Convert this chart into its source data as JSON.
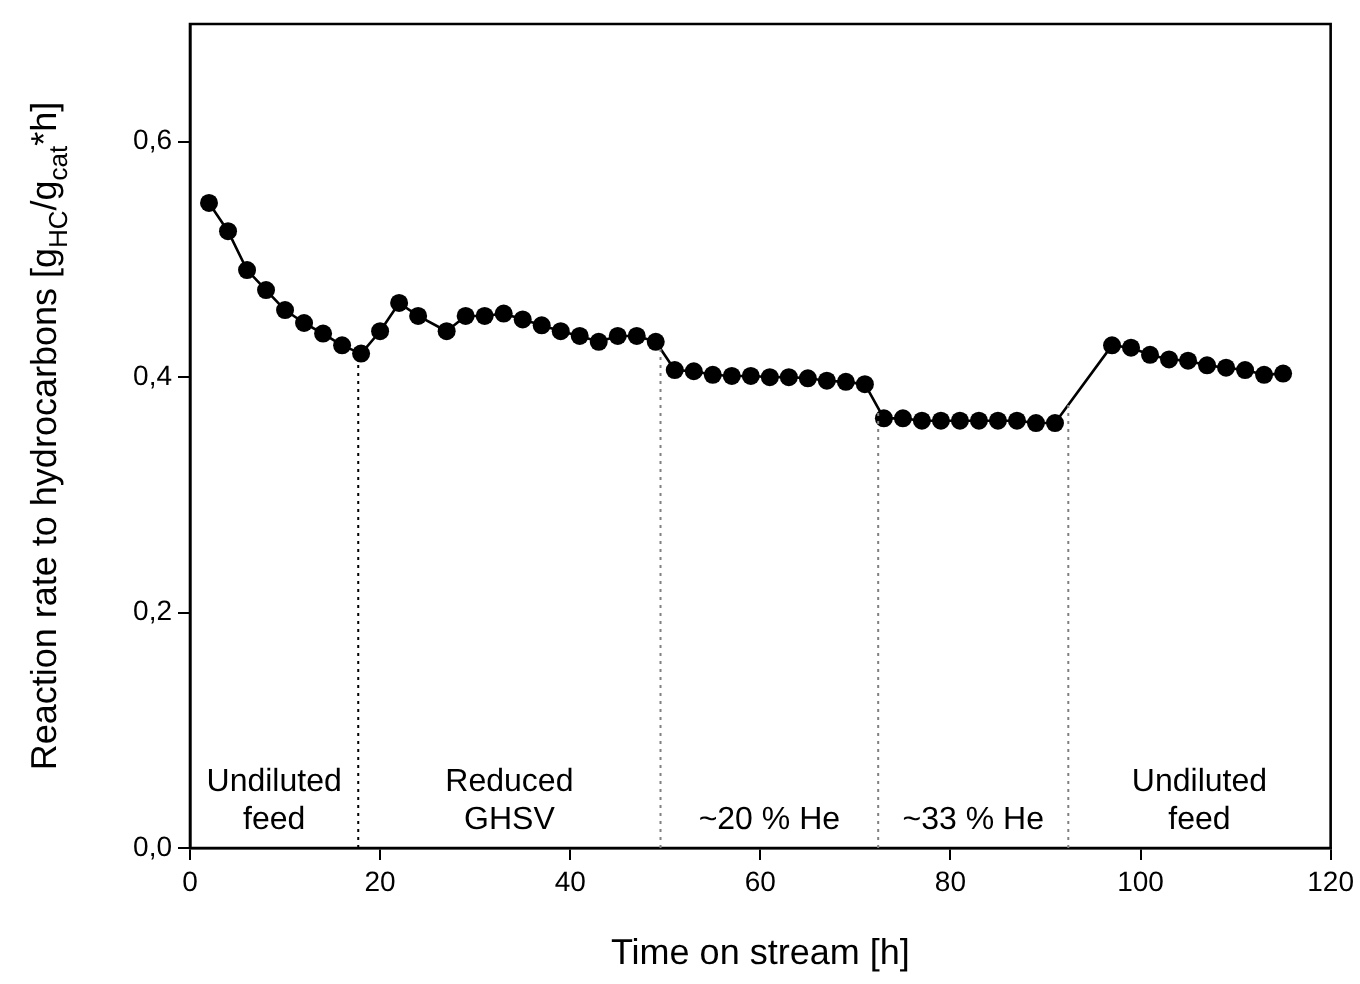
{
  "chart_data": {
    "type": "line",
    "xlabel": "Time on stream [h]",
    "ylabel": "Reaction rate to hydrocarbons [g$_{HC}$/g$_{cat}$*h]",
    "x": [
      2,
      4,
      6,
      8,
      10,
      12,
      14,
      16,
      18,
      20,
      22,
      24,
      27,
      29,
      31,
      33,
      35,
      37,
      39,
      41,
      43,
      45,
      47,
      49,
      51,
      53,
      55,
      57,
      59,
      61,
      63,
      65,
      67,
      69,
      71,
      73,
      75,
      77,
      79,
      81,
      83,
      85,
      87,
      89,
      91,
      97,
      99,
      101,
      103,
      105,
      107,
      109,
      111,
      113,
      115
    ],
    "series": [
      {
        "color": "#000000",
        "values": [
          0.548,
          0.524,
          0.491,
          0.474,
          0.457,
          0.446,
          0.437,
          0.427,
          0.42,
          0.439,
          0.463,
          0.452,
          0.439,
          0.452,
          0.452,
          0.454,
          0.449,
          0.444,
          0.439,
          0.435,
          0.43,
          0.435,
          0.435,
          0.43,
          0.406,
          0.405,
          0.402,
          0.401,
          0.401,
          0.4,
          0.4,
          0.399,
          0.397,
          0.396,
          0.394,
          0.365,
          0.365,
          0.363,
          0.363,
          0.363,
          0.363,
          0.363,
          0.363,
          0.361,
          0.361,
          0.427,
          0.425,
          0.419,
          0.415,
          0.414,
          0.41,
          0.408,
          0.406,
          0.402,
          0.403
        ]
      }
    ],
    "xlim": [
      0,
      120
    ],
    "xticks": [
      0,
      20,
      40,
      60,
      80,
      100,
      120
    ],
    "ylim": [
      0,
      0.7
    ],
    "yticks": [
      {
        "value": 0,
        "label": "0,0"
      },
      {
        "value": 0.2,
        "label": "0,2"
      },
      {
        "value": 0.4,
        "label": "0,4"
      },
      {
        "value": 0.6,
        "label": "0,6"
      }
    ],
    "ref_lines": [
      {
        "axis": "x",
        "value": 17.7,
        "color": "#000000",
        "line_style": "dotted"
      },
      {
        "axis": "x",
        "value": 49.5,
        "color": "#808080",
        "line_style": "dotted"
      },
      {
        "axis": "x",
        "value": 72.4,
        "color": "#808080",
        "line_style": "dotted"
      },
      {
        "axis": "x",
        "value": 92.4,
        "color": "#808080",
        "line_style": "dotted"
      }
    ],
    "annotations": [
      "Undiluted\nfeed",
      "Reduced\nGHSV",
      "~20 % He",
      "~33 % He",
      "Undiluted\nfeed"
    ],
    "grid": false,
    "legend": false,
    "marker": "circle",
    "line_style": "solid"
  }
}
